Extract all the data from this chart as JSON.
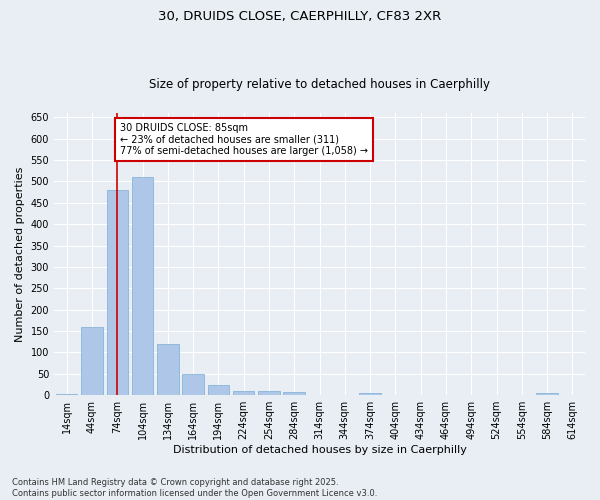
{
  "title_line1": "30, DRUIDS CLOSE, CAERPHILLY, CF83 2XR",
  "title_line2": "Size of property relative to detached houses in Caerphilly",
  "xlabel": "Distribution of detached houses by size in Caerphilly",
  "ylabel": "Number of detached properties",
  "categories": [
    "14sqm",
    "44sqm",
    "74sqm",
    "104sqm",
    "134sqm",
    "164sqm",
    "194sqm",
    "224sqm",
    "254sqm",
    "284sqm",
    "314sqm",
    "344sqm",
    "374sqm",
    "404sqm",
    "434sqm",
    "464sqm",
    "494sqm",
    "524sqm",
    "554sqm",
    "584sqm",
    "614sqm"
  ],
  "values": [
    3,
    160,
    480,
    510,
    120,
    50,
    23,
    11,
    11,
    7,
    0,
    0,
    4,
    0,
    0,
    0,
    0,
    0,
    0,
    4,
    0
  ],
  "bar_color": "#aec6e8",
  "bar_edge_color": "#7aafd4",
  "vline_color": "#cc0000",
  "annotation_text": "30 DRUIDS CLOSE: 85sqm\n← 23% of detached houses are smaller (311)\n77% of semi-detached houses are larger (1,058) →",
  "annotation_box_facecolor": "#ffffff",
  "annotation_box_edgecolor": "#cc0000",
  "ylim": [
    0,
    660
  ],
  "yticks": [
    0,
    50,
    100,
    150,
    200,
    250,
    300,
    350,
    400,
    450,
    500,
    550,
    600,
    650
  ],
  "footer_line1": "Contains HM Land Registry data © Crown copyright and database right 2025.",
  "footer_line2": "Contains public sector information licensed under the Open Government Licence v3.0.",
  "background_color": "#e8eef4",
  "plot_background_color": "#e8eef4",
  "grid_color": "#ffffff",
  "title1_fontsize": 9.5,
  "title2_fontsize": 8.5,
  "xlabel_fontsize": 8,
  "ylabel_fontsize": 8,
  "tick_fontsize": 7,
  "annotation_fontsize": 7,
  "footer_fontsize": 6
}
